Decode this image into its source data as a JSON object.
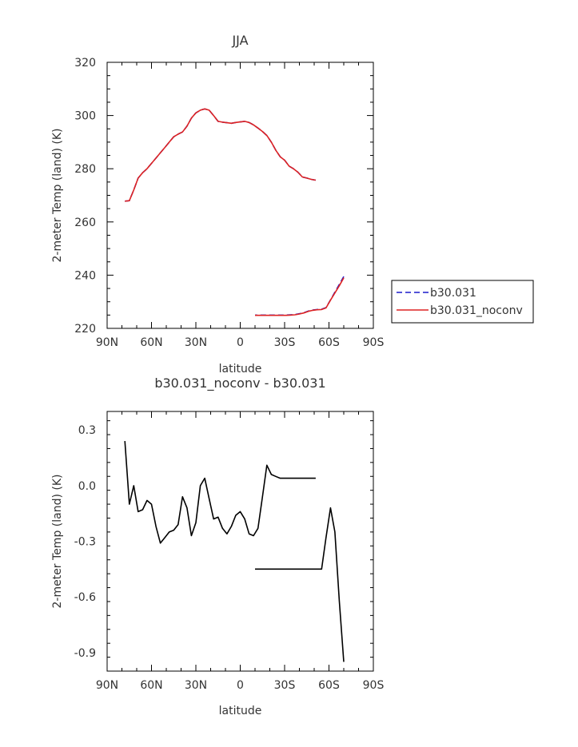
{
  "chart_data": [
    {
      "type": "line",
      "title": "JJA",
      "xlabel": "latitude",
      "ylabel": "2-meter Temp (land) (K)",
      "xlim": [
        90,
        -90
      ],
      "ylim": [
        220,
        320
      ],
      "x_ticks": [
        90,
        60,
        30,
        0,
        -30,
        -60,
        -90
      ],
      "x_tick_labels": [
        "90N",
        "60N",
        "30N",
        "0",
        "30S",
        "60S",
        "90S"
      ],
      "y_ticks": [
        220,
        240,
        260,
        280,
        300,
        320
      ],
      "y_tick_labels": [
        "220",
        "240",
        "260",
        "280",
        "300",
        "320"
      ],
      "legend": {
        "position": "right",
        "entries": [
          {
            "label": "b30.031",
            "color": "#1a1acc",
            "dash": "dashed"
          },
          {
            "label": "b30.031_noconv",
            "color": "#dd2222",
            "dash": "solid"
          }
        ]
      },
      "series": [
        {
          "name": "b30.031",
          "color": "#1a1acc",
          "dash": "dashed",
          "segments": [
            {
              "x": [
                78,
                75,
                72,
                69,
                66,
                63,
                60,
                57,
                54,
                51,
                48,
                45,
                42,
                39,
                36,
                33,
                30,
                27,
                24,
                21,
                18,
                15,
                12,
                9,
                6,
                3,
                0,
                -3,
                -6,
                -9,
                -12,
                -15,
                -18,
                -21,
                -24,
                -27,
                -30,
                -33,
                -36,
                -39,
                -42,
                -45,
                -48,
                -51
              ],
              "y": [
                267.8,
                268.0,
                272.0,
                276.5,
                278.5,
                280.0,
                282.0,
                284.0,
                286.0,
                288.0,
                290.0,
                292.0,
                293.0,
                293.8,
                296.0,
                299.0,
                301.0,
                302.0,
                302.5,
                302.0,
                300.0,
                297.8,
                297.5,
                297.3,
                297.1,
                297.4,
                297.6,
                297.8,
                297.4,
                296.5,
                295.3,
                294.0,
                292.5,
                290.0,
                287.0,
                284.5,
                283.2,
                281.0,
                280.0,
                278.7,
                276.9,
                276.5,
                276.0,
                275.7
              ]
            },
            {
              "x": [
                -70,
                -67,
                -64,
                -61,
                -58,
                -55,
                -52,
                -49,
                -46,
                -43,
                -40,
                -37,
                -34,
                -31,
                -28,
                -25,
                -22,
                -19,
                -16,
                -13,
                -10
              ],
              "y": [
                239.5,
                236.5,
                233.6,
                230.7,
                227.8,
                227.2,
                227.1,
                226.9,
                226.5,
                225.9,
                225.5,
                225.2,
                225.1,
                225.0,
                225.0,
                225.0,
                225.0,
                225.0,
                225.0,
                225.0,
                225.0
              ]
            }
          ]
        },
        {
          "name": "b30.031_noconv",
          "color": "#dd2222",
          "dash": "solid",
          "segments": [
            {
              "x": [
                78,
                75,
                72,
                69,
                66,
                63,
                60,
                57,
                54,
                51,
                48,
                45,
                42,
                39,
                36,
                33,
                30,
                27,
                24,
                21,
                18,
                15,
                12,
                9,
                6,
                3,
                0,
                -3,
                -6,
                -9,
                -12,
                -15,
                -18,
                -21,
                -24,
                -27,
                -30,
                -33,
                -36,
                -39,
                -42,
                -45,
                -48,
                -51
              ],
              "y": [
                267.8,
                268.0,
                272.0,
                276.5,
                278.5,
                280.0,
                282.0,
                284.0,
                286.0,
                288.0,
                290.0,
                292.0,
                293.0,
                293.8,
                296.0,
                299.0,
                301.0,
                302.0,
                302.5,
                302.0,
                300.0,
                297.8,
                297.5,
                297.3,
                297.1,
                297.4,
                297.6,
                297.8,
                297.4,
                296.5,
                295.3,
                294.0,
                292.5,
                290.0,
                287.0,
                284.5,
                283.2,
                281.0,
                280.0,
                278.7,
                276.9,
                276.5,
                276.0,
                275.7
              ]
            },
            {
              "x": [
                -70,
                -67,
                -64,
                -61,
                -58,
                -55,
                -52,
                -49,
                -46,
                -43,
                -40,
                -37,
                -34,
                -31,
                -28,
                -25,
                -22,
                -19,
                -16,
                -13,
                -10
              ],
              "y": [
                239.0,
                236.0,
                233.3,
                230.6,
                227.7,
                227.1,
                227.0,
                226.8,
                226.4,
                225.8,
                225.4,
                225.1,
                225.0,
                224.9,
                224.9,
                224.9,
                224.9,
                224.9,
                224.9,
                224.9,
                224.9
              ]
            }
          ]
        }
      ]
    },
    {
      "type": "line",
      "title": "b30.031_noconv - b30.031",
      "xlabel": "latitude",
      "ylabel": "2-meter Temp (land) (K)",
      "xlim": [
        90,
        -90
      ],
      "ylim": [
        -1.0,
        0.4
      ],
      "x_ticks": [
        90,
        60,
        30,
        0,
        -30,
        -60,
        -90
      ],
      "x_tick_labels": [
        "90N",
        "60N",
        "30N",
        "0",
        "30S",
        "60S",
        "90S"
      ],
      "y_ticks": [
        -0.9,
        -0.6,
        -0.3,
        0.0,
        0.3
      ],
      "y_tick_labels": [
        "-0.9",
        "-0.6",
        "-0.3",
        "0.0",
        "0.3"
      ],
      "series": [
        {
          "name": "",
          "color": "#000000",
          "dash": "solid",
          "segments": [
            {
              "x": [
                78,
                75,
                72,
                69,
                66,
                63,
                60,
                57,
                54,
                51,
                48,
                45,
                42,
                39,
                36,
                33,
                30,
                27,
                24,
                21,
                18,
                15,
                12,
                9,
                6,
                3,
                0,
                -3,
                -6,
                -9,
                -12,
                -15,
                -18,
                -21,
                -24,
                -27,
                -30,
                -33,
                -36,
                -39,
                -42,
                -45,
                -48,
                -51
              ],
              "y": [
                0.24,
                -0.1,
                0.0,
                -0.14,
                -0.13,
                -0.08,
                -0.1,
                -0.22,
                -0.31,
                -0.28,
                -0.25,
                -0.24,
                -0.21,
                -0.06,
                -0.12,
                -0.27,
                -0.2,
                0.0,
                0.04,
                -0.07,
                -0.18,
                -0.17,
                -0.23,
                -0.26,
                -0.22,
                -0.16,
                -0.14,
                -0.18,
                -0.26,
                -0.27,
                -0.23,
                -0.06,
                0.11,
                0.06,
                0.05,
                0.04,
                0.04,
                0.04,
                0.04,
                0.04,
                0.04,
                0.04,
                0.04,
                0.04
              ]
            },
            {
              "x": [
                -70,
                -67,
                -64,
                -61,
                -58,
                -55,
                -52,
                -49,
                -46,
                -43,
                -40,
                -37,
                -34,
                -31,
                -28,
                -25,
                -22,
                -19,
                -16,
                -13,
                -10
              ],
              "y": [
                -0.95,
                -0.62,
                -0.25,
                -0.12,
                -0.28,
                -0.45,
                -0.45,
                -0.45,
                -0.45,
                -0.45,
                -0.45,
                -0.45,
                -0.45,
                -0.45,
                -0.45,
                -0.45,
                -0.45,
                -0.45,
                -0.45,
                -0.45,
                -0.45
              ]
            }
          ]
        }
      ]
    }
  ]
}
